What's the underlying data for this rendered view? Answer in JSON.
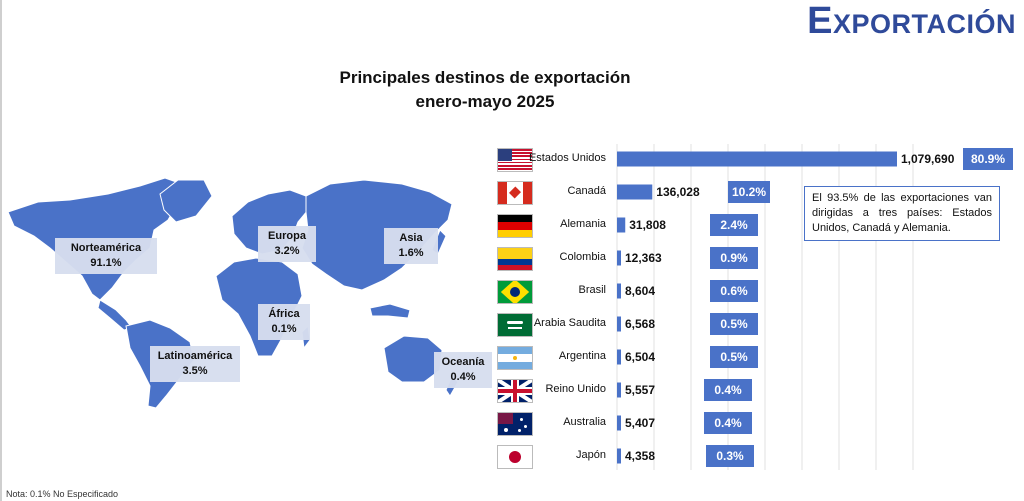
{
  "page": {
    "title": "Exportación",
    "note": "Nota: 0.1% No Especificado"
  },
  "chart_data": {
    "type": "bar",
    "orientation": "horizontal",
    "title": "Principales destinos de exportación",
    "subtitle": "enero-mayo 2025",
    "categories": [
      "Estados Unidos",
      "Canadá",
      "Alemania",
      "Colombia",
      "Brasil",
      "Arabia Saudita",
      "Argentina",
      "Reino Unido",
      "Australia",
      "Japón"
    ],
    "values": [
      1079690,
      136028,
      31808,
      12363,
      8604,
      6568,
      6504,
      5557,
      5407,
      4358
    ],
    "value_labels": [
      "1,079,690",
      "136,028",
      "31,808",
      "12,363",
      "8,604",
      "6,568",
      "6,504",
      "5,557",
      "5,407",
      "4,358"
    ],
    "shares": [
      "80.9%",
      "10.2%",
      "2.4%",
      "0.9%",
      "0.6%",
      "0.5%",
      "0.5%",
      "0.4%",
      "0.4%",
      "0.3%"
    ],
    "flags": [
      "flag-us",
      "flag-canada",
      "flag-germany",
      "flag-colombia",
      "flag-brazil",
      "flag-saudi-arabia",
      "flag-argentina",
      "flag-uk",
      "flag-australia",
      "flag-japan"
    ],
    "bar_color": "#4a72c8",
    "grid": true,
    "annotation": "El 93.5% de las exportaciones van dirigidas a tres países: Estados Unidos, Canadá y Alemania."
  },
  "map": {
    "color": "#4a72c8",
    "regions": [
      {
        "name": "Norteamérica",
        "share": "91.1%"
      },
      {
        "name": "Europa",
        "share": "3.2%"
      },
      {
        "name": "Asia",
        "share": "1.6%"
      },
      {
        "name": "África",
        "share": "0.1%"
      },
      {
        "name": "Latinoamérica",
        "share": "3.5%"
      },
      {
        "name": "Oceanía",
        "share": "0.4%"
      }
    ]
  }
}
